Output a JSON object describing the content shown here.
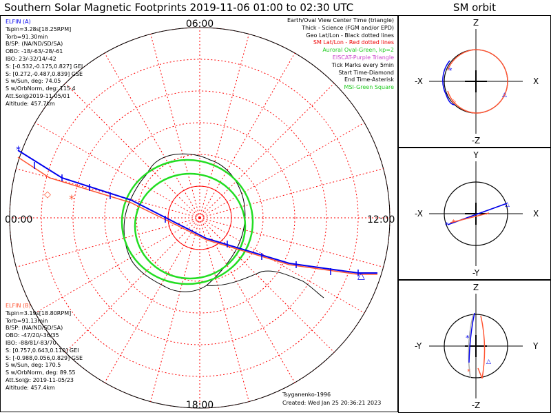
{
  "title": "Southern Solar Magnetic Footprints 2019-11-06 01:00 to 02:30 UTC",
  "sm_orbit_title": "SM orbit",
  "mlt_labels": {
    "top": "06:00",
    "bottom": "18:00",
    "left": "00:00",
    "right": "12:00"
  },
  "elfin_a": {
    "name": "ELFIN (A)",
    "lines": [
      "Tspin=3.28s[18.25RPM]",
      "Torb=91.30min",
      "B/SP: (NA/ND/SD/SA)",
      "OBO: -18/-63/-28/-61",
      "IBO: 23/-32/14/-42",
      "S: [-0.532,-0.175,0.827] GEI",
      "S: [0.272,-0.487,0.839] GSE",
      "S w/Sun, deg: 74.05",
      "S w/OrbNorm, deg: 115.4",
      "Att.Sol@2019-11-05/01",
      "Altitude: 457.7km"
    ],
    "color": "#0000ee"
  },
  "elfin_b": {
    "name": "ELFIN (B)",
    "lines": [
      "Tspin=3.19s[18.80RPM]",
      "Torb=91.13min",
      "B/SP: (NA/ND/SD/SA)",
      "OBO: -47/20/-36/35",
      "IBO: -88/81/-83/70",
      "S: [0.757,0.643,0.110] GEI",
      "S: [-0.988,0.056,0.829] GSE",
      "S w/Sun, deg: 170.5",
      "S w/OrbNorm, deg: 89.55",
      "Att.Sol@: 2019-11-05/23",
      "Altitude: 457.4km"
    ],
    "color": "#ff5533"
  },
  "legend": [
    {
      "text": "Earth/Oval View Center Time (triangle)",
      "color": "#000000"
    },
    {
      "text": "Thick - Science (FGM and/or EPD)",
      "color": "#000000"
    },
    {
      "text": "Geo Lat/Lon - Black dotted lines",
      "color": "#000000"
    },
    {
      "text": "SM Lat/Lon - Red dotted lines",
      "color": "#ee0000"
    },
    {
      "text": "Auroral Oval-Green, kp=2",
      "color": "#22cc22"
    },
    {
      "text": "EISCAT-Purple Triangle",
      "color": "#cc44cc"
    },
    {
      "text": "Tick Marks every 5min",
      "color": "#000000"
    },
    {
      "text": "Start Time-Diamond",
      "color": "#000000"
    },
    {
      "text": "End Time-Asterisk",
      "color": "#000000"
    },
    {
      "text": "MSI-Green Square",
      "color": "#22cc22"
    }
  ],
  "footer": {
    "model": "Tsyganenko-1996",
    "created": "Created: Wed Jan 25 20:36:21 2023"
  },
  "orbit_panels": [
    {
      "top": "Z",
      "bottom": "-Z",
      "left": "-X",
      "right": "X"
    },
    {
      "top": "Y",
      "bottom": "-Y",
      "left": "-X",
      "right": "X"
    },
    {
      "top": "Z",
      "bottom": "-Z",
      "left": "-Y",
      "right": "Y"
    }
  ],
  "colors": {
    "grid": "#ff0000",
    "oval": "#22dd22",
    "elfin_a": "#0000ee",
    "elfin_b": "#ff5533",
    "orbit_ref": "#aaaaaa"
  }
}
